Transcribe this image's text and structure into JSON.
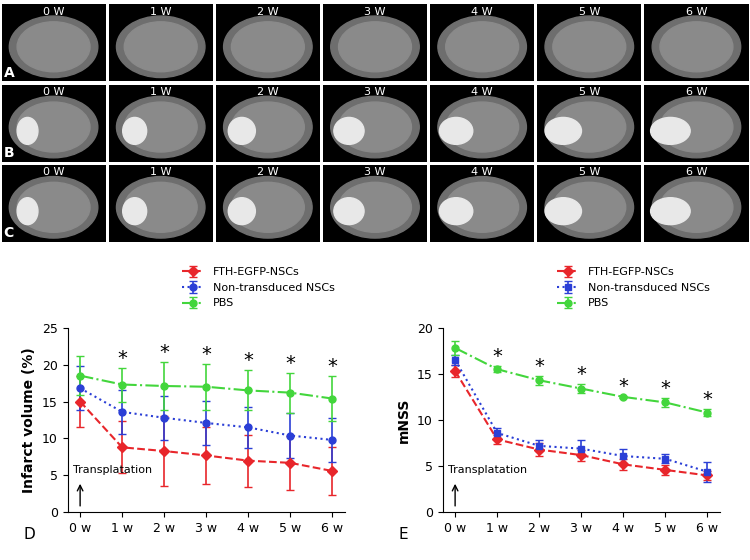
{
  "image_panels": {
    "rows": [
      "A",
      "B",
      "C"
    ],
    "columns": [
      "0 W",
      "1 W",
      "2 W",
      "3 W",
      "4 W",
      "5 W",
      "6 W"
    ]
  },
  "chart_data": [
    {
      "type": "line",
      "panel": "D",
      "y_label": "Infarct volume (%)",
      "categories": [
        "0 w",
        "1 w",
        "2 w",
        "3 w",
        "4 w",
        "5 w",
        "6 w"
      ],
      "ylim": [
        0,
        25
      ],
      "yticks": [
        0,
        5,
        10,
        15,
        20,
        25
      ],
      "legend": "upper right",
      "annotation": "Transplatation",
      "significance": {
        "text": "*",
        "categories": [
          "1 w",
          "2 w",
          "3 w",
          "4 w",
          "5 w",
          "6 w"
        ]
      },
      "series": [
        {
          "name": "FTH-EGFP-NSCs",
          "color": "#e8262b",
          "marker": "diamond",
          "line_style": "dashed",
          "values": [
            15.0,
            8.8,
            8.3,
            7.7,
            7.0,
            6.7,
            5.6
          ],
          "error": [
            3.5,
            3.5,
            4.7,
            3.8,
            3.5,
            3.7,
            3.2
          ]
        },
        {
          "name": "Non-transduced NSCs",
          "color": "#2b3fd6",
          "marker": "circle",
          "line_style": "dotted",
          "values": [
            16.8,
            13.6,
            12.8,
            12.1,
            11.5,
            10.4,
            9.8
          ],
          "error": [
            3.0,
            3.0,
            3.0,
            3.0,
            2.8,
            3.0,
            3.0
          ]
        },
        {
          "name": "PBS",
          "color": "#43d63c",
          "marker": "circle",
          "line_style": "dashdot",
          "values": [
            18.5,
            17.3,
            17.1,
            17.0,
            16.5,
            16.2,
            15.4
          ],
          "error": [
            2.6,
            2.3,
            3.2,
            3.1,
            2.7,
            2.7,
            3.1
          ]
        }
      ]
    },
    {
      "type": "line",
      "panel": "E",
      "y_label": "mNSS",
      "categories": [
        "0 w",
        "1 w",
        "2 w",
        "3 w",
        "4 w",
        "5 w",
        "6 w"
      ],
      "ylim": [
        0,
        20
      ],
      "yticks": [
        0,
        5,
        10,
        15,
        20
      ],
      "legend": "upper right",
      "annotation": "Transplatation",
      "significance": {
        "text": "*",
        "categories": [
          "1 w",
          "2 w",
          "3 w",
          "4 w",
          "5 w",
          "6 w"
        ]
      },
      "series": [
        {
          "name": "FTH-EGFP-NSCs",
          "color": "#e8262b",
          "marker": "diamond",
          "line_style": "dashed",
          "values": [
            15.3,
            7.9,
            6.8,
            6.2,
            5.2,
            4.6,
            4.0
          ],
          "error": [
            0.6,
            0.5,
            0.7,
            0.6,
            0.6,
            0.5,
            0.5
          ]
        },
        {
          "name": "Non-transduced NSCs",
          "color": "#2b3fd6",
          "marker": "square",
          "line_style": "dotted",
          "values": [
            16.5,
            8.6,
            7.2,
            6.9,
            6.1,
            5.8,
            4.4
          ],
          "error": [
            0.5,
            0.5,
            0.6,
            0.9,
            0.8,
            0.5,
            1.1
          ]
        },
        {
          "name": "PBS",
          "color": "#43d63c",
          "marker": "circle",
          "line_style": "dashdot",
          "values": [
            17.8,
            15.5,
            14.3,
            13.4,
            12.5,
            11.9,
            10.8
          ],
          "error": [
            0.8,
            0.3,
            0.5,
            0.5,
            0.1,
            0.5,
            0.4
          ]
        }
      ]
    }
  ]
}
